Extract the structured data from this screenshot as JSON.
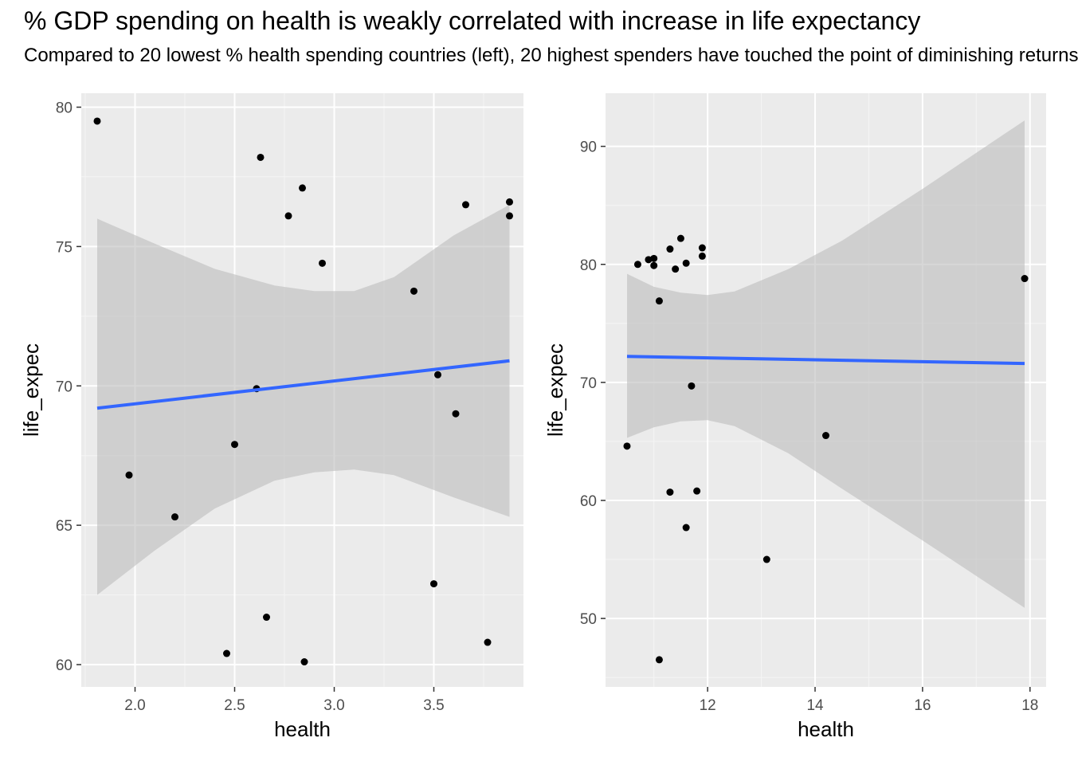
{
  "title": "% GDP spending on health is weakly correlated with increase in life expectancy",
  "subtitle": "Compared to 20 lowest % health spending countries (left), 20 highest spenders have touched the point of diminishing returns",
  "colors": {
    "panel_bg": "#ebebeb",
    "grid_major": "#ffffff",
    "point": "#000000",
    "fit_line": "#3366ff",
    "ribbon": "#bdbdbd"
  },
  "chart_data": [
    {
      "type": "scatter",
      "xlabel": "health",
      "ylabel": "life_expec",
      "xlim": [
        1.73,
        3.95
      ],
      "ylim": [
        59.2,
        80.5
      ],
      "xticks": [
        2.0,
        2.5,
        3.0,
        3.5
      ],
      "xtick_labels": [
        "2.0",
        "2.5",
        "3.0",
        "3.5"
      ],
      "yticks": [
        60,
        65,
        70,
        75,
        80
      ],
      "ytick_labels": [
        "60",
        "65",
        "70",
        "75",
        "80"
      ],
      "grid": true,
      "points": [
        {
          "x": 1.81,
          "y": 79.5
        },
        {
          "x": 1.97,
          "y": 66.8
        },
        {
          "x": 2.2,
          "y": 65.3
        },
        {
          "x": 2.46,
          "y": 60.4
        },
        {
          "x": 2.5,
          "y": 67.9
        },
        {
          "x": 2.61,
          "y": 69.9
        },
        {
          "x": 2.63,
          "y": 78.2
        },
        {
          "x": 2.66,
          "y": 61.7
        },
        {
          "x": 2.77,
          "y": 76.1
        },
        {
          "x": 2.84,
          "y": 77.1
        },
        {
          "x": 2.85,
          "y": 60.1
        },
        {
          "x": 2.94,
          "y": 74.4
        },
        {
          "x": 3.4,
          "y": 73.4
        },
        {
          "x": 3.5,
          "y": 62.9
        },
        {
          "x": 3.52,
          "y": 70.4
        },
        {
          "x": 3.61,
          "y": 69.0
        },
        {
          "x": 3.66,
          "y": 76.5
        },
        {
          "x": 3.77,
          "y": 60.8
        },
        {
          "x": 3.88,
          "y": 76.6
        },
        {
          "x": 3.88,
          "y": 76.1
        }
      ],
      "fit": {
        "x0": 1.81,
        "y0": 69.2,
        "x1": 3.88,
        "y1": 70.9
      },
      "ribbon": [
        {
          "x": 1.81,
          "lo": 62.5,
          "hi": 76.0
        },
        {
          "x": 2.1,
          "lo": 64.1,
          "hi": 75.1
        },
        {
          "x": 2.4,
          "lo": 65.6,
          "hi": 74.2
        },
        {
          "x": 2.7,
          "lo": 66.6,
          "hi": 73.6
        },
        {
          "x": 2.9,
          "lo": 66.9,
          "hi": 73.4
        },
        {
          "x": 3.1,
          "lo": 67.0,
          "hi": 73.4
        },
        {
          "x": 3.3,
          "lo": 66.8,
          "hi": 73.9
        },
        {
          "x": 3.6,
          "lo": 66.0,
          "hi": 75.4
        },
        {
          "x": 3.88,
          "lo": 65.3,
          "hi": 76.5
        }
      ]
    },
    {
      "type": "scatter",
      "xlabel": "health",
      "ylabel": "life_expec",
      "xlim": [
        10.1,
        18.3
      ],
      "ylim": [
        44.2,
        94.5
      ],
      "xticks": [
        12,
        14,
        16,
        18
      ],
      "xtick_labels": [
        "12",
        "14",
        "16",
        "18"
      ],
      "yticks": [
        50,
        60,
        70,
        80,
        90
      ],
      "ytick_labels": [
        "50",
        "60",
        "70",
        "80",
        "90"
      ],
      "grid": true,
      "points": [
        {
          "x": 10.5,
          "y": 64.6
        },
        {
          "x": 10.7,
          "y": 80.0
        },
        {
          "x": 10.9,
          "y": 80.4
        },
        {
          "x": 11.0,
          "y": 80.5
        },
        {
          "x": 11.0,
          "y": 79.9
        },
        {
          "x": 11.1,
          "y": 76.9
        },
        {
          "x": 11.1,
          "y": 46.5
        },
        {
          "x": 11.3,
          "y": 81.3
        },
        {
          "x": 11.3,
          "y": 60.7
        },
        {
          "x": 11.4,
          "y": 79.6
        },
        {
          "x": 11.5,
          "y": 82.2
        },
        {
          "x": 11.6,
          "y": 80.1
        },
        {
          "x": 11.6,
          "y": 57.7
        },
        {
          "x": 11.7,
          "y": 69.7
        },
        {
          "x": 11.8,
          "y": 60.8
        },
        {
          "x": 11.9,
          "y": 81.4
        },
        {
          "x": 11.9,
          "y": 80.7
        },
        {
          "x": 13.1,
          "y": 55.0
        },
        {
          "x": 14.2,
          "y": 65.5
        },
        {
          "x": 17.9,
          "y": 78.8
        }
      ],
      "fit": {
        "x0": 10.5,
        "y0": 72.2,
        "x1": 17.9,
        "y1": 71.6
      },
      "ribbon": [
        {
          "x": 10.5,
          "lo": 65.3,
          "hi": 79.2
        },
        {
          "x": 11.0,
          "lo": 66.2,
          "hi": 78.1
        },
        {
          "x": 11.5,
          "lo": 66.7,
          "hi": 77.6
        },
        {
          "x": 12.0,
          "lo": 66.8,
          "hi": 77.4
        },
        {
          "x": 12.5,
          "lo": 66.3,
          "hi": 77.7
        },
        {
          "x": 13.5,
          "lo": 64.0,
          "hi": 79.6
        },
        {
          "x": 14.5,
          "lo": 61.0,
          "hi": 82.0
        },
        {
          "x": 16.0,
          "lo": 56.6,
          "hi": 86.4
        },
        {
          "x": 17.9,
          "lo": 50.9,
          "hi": 92.2
        }
      ]
    }
  ]
}
